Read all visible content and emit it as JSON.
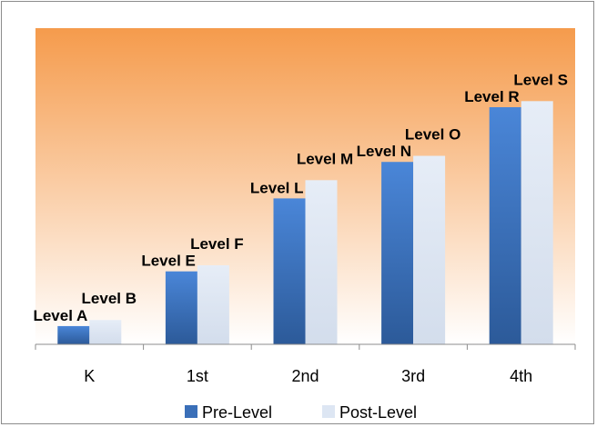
{
  "chart_data": {
    "type": "bar",
    "categories": [
      "K",
      "1st",
      "2nd",
      "3rd",
      "4th"
    ],
    "series": [
      {
        "name": "Pre-Level",
        "values": [
          3,
          12,
          24,
          30,
          39
        ],
        "labels": [
          "Level A",
          "Level E",
          "Level L",
          "Level N",
          "Level R"
        ]
      },
      {
        "name": "Post-Level",
        "values": [
          4,
          13,
          27,
          31,
          40
        ],
        "labels": [
          "Level B",
          "Level F",
          "Level M",
          "Level O",
          "Level S"
        ]
      }
    ],
    "title": "",
    "xlabel": "",
    "ylabel": "",
    "ylim": [
      0,
      52
    ],
    "grid": false,
    "legend": "bottom",
    "colors": {
      "pre": "#3a6fb8",
      "post": "#dde6f3",
      "plot_top": "#f59b4c",
      "plot_bottom": "#ffffff"
    }
  }
}
